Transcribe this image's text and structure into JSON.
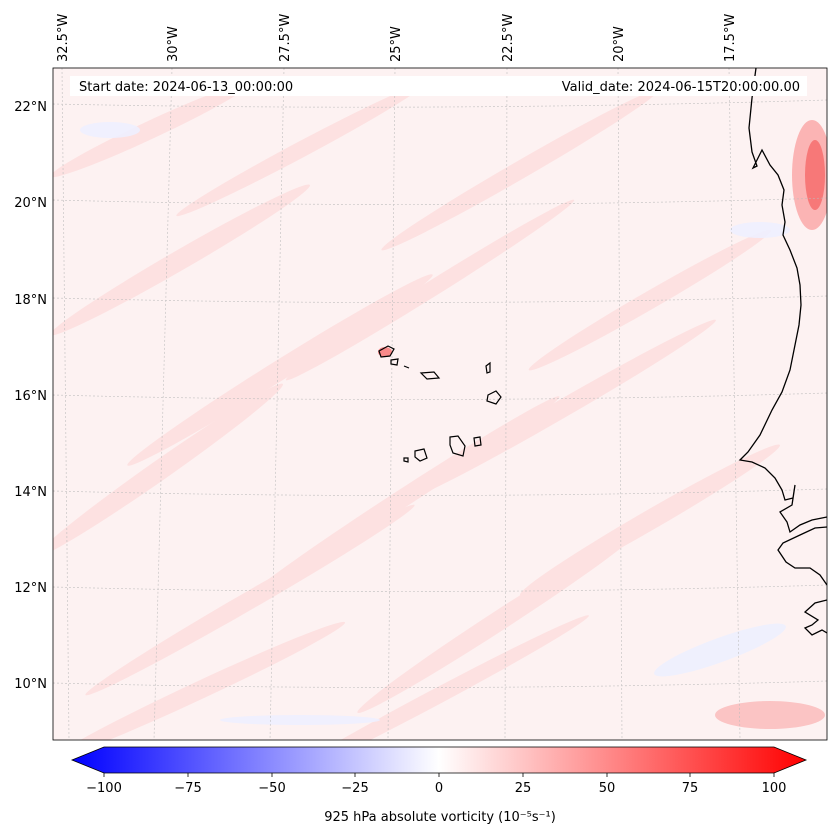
{
  "map": {
    "start_date": "Start date: 2024-06-13_00:00:00",
    "valid_date": "Valid_date: 2024-06-15T20:00:00.00",
    "longitude_labels": [
      "32.5°W",
      "30°W",
      "27.5°W",
      "25°W",
      "22.5°W",
      "20°W",
      "17.5°W"
    ],
    "latitude_labels": [
      "22°N",
      "20°N",
      "18°N",
      "16°N",
      "14°N",
      "12°N",
      "10°N"
    ],
    "features": {
      "coastline": "west-africa-coast",
      "islands": "cape-verde-islands"
    }
  },
  "colorbar": {
    "label": "925 hPa absolute vorticity (10⁻⁵s⁻¹)",
    "ticks": [
      "−100",
      "−75",
      "−50",
      "−25",
      "0",
      "25",
      "50",
      "75",
      "100"
    ],
    "range": [
      -100,
      100
    ],
    "colors": {
      "negative": "#0000ff",
      "zero": "#ffffff",
      "positive": "#ff0000"
    }
  }
}
